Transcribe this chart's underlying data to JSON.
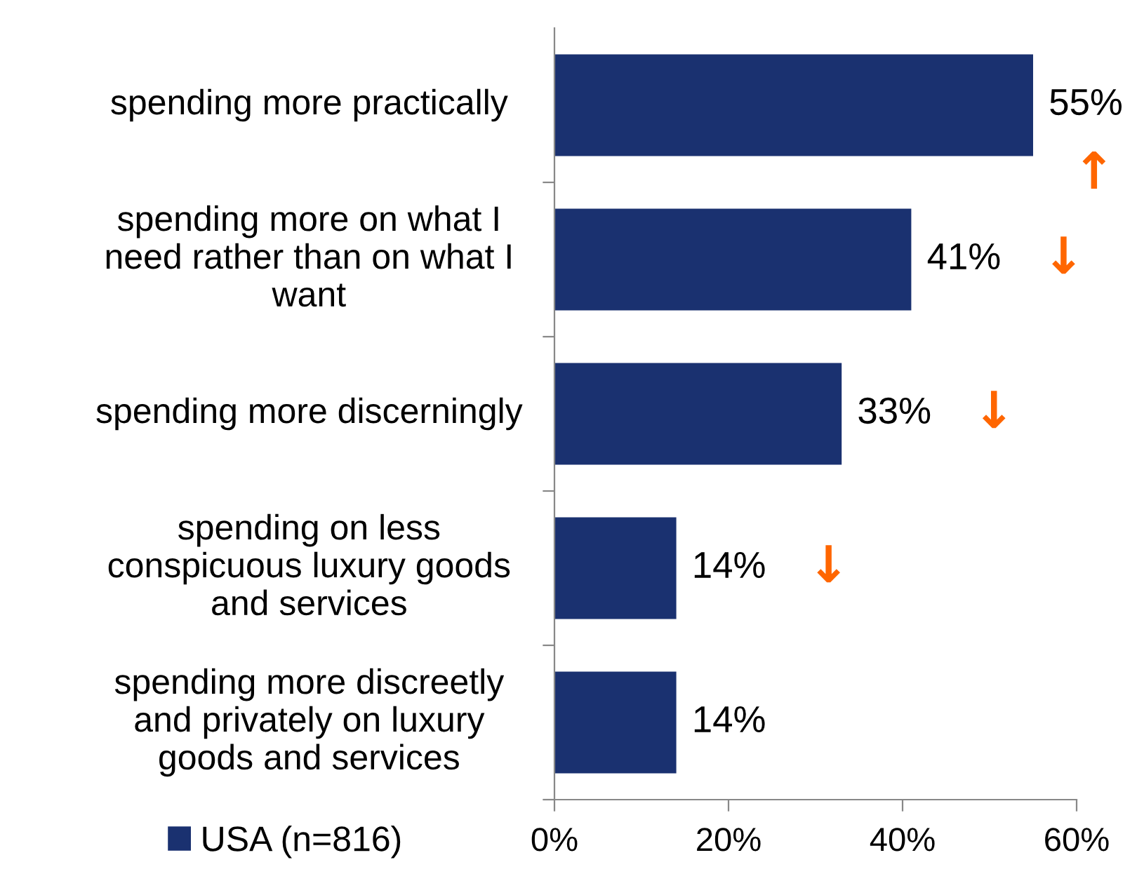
{
  "chart_data": {
    "type": "bar",
    "orientation": "horizontal",
    "categories": [
      "spending more practically",
      "spending more on what I need rather than on what I want",
      "spending more discerningly",
      "spending on less conspicuous luxury goods and services",
      "spending more discreetly and privately on luxury goods and services"
    ],
    "series": [
      {
        "name": "USA (n=816)",
        "color": "#1a3170",
        "values": [
          55,
          41,
          33,
          14,
          14
        ],
        "value_labels": [
          "55%",
          "41%",
          "33%",
          "14%",
          "14%"
        ]
      }
    ],
    "xlim": [
      0,
      60
    ],
    "xticks": [
      {
        "value": 0,
        "label": "0%"
      },
      {
        "value": 20,
        "label": "20%"
      },
      {
        "value": 40,
        "label": "40%"
      },
      {
        "value": 60,
        "label": "60%"
      }
    ],
    "annotations": [
      "↑",
      "↓",
      "↓",
      "↓"
    ],
    "legend": "bottom left",
    "grid": false
  }
}
